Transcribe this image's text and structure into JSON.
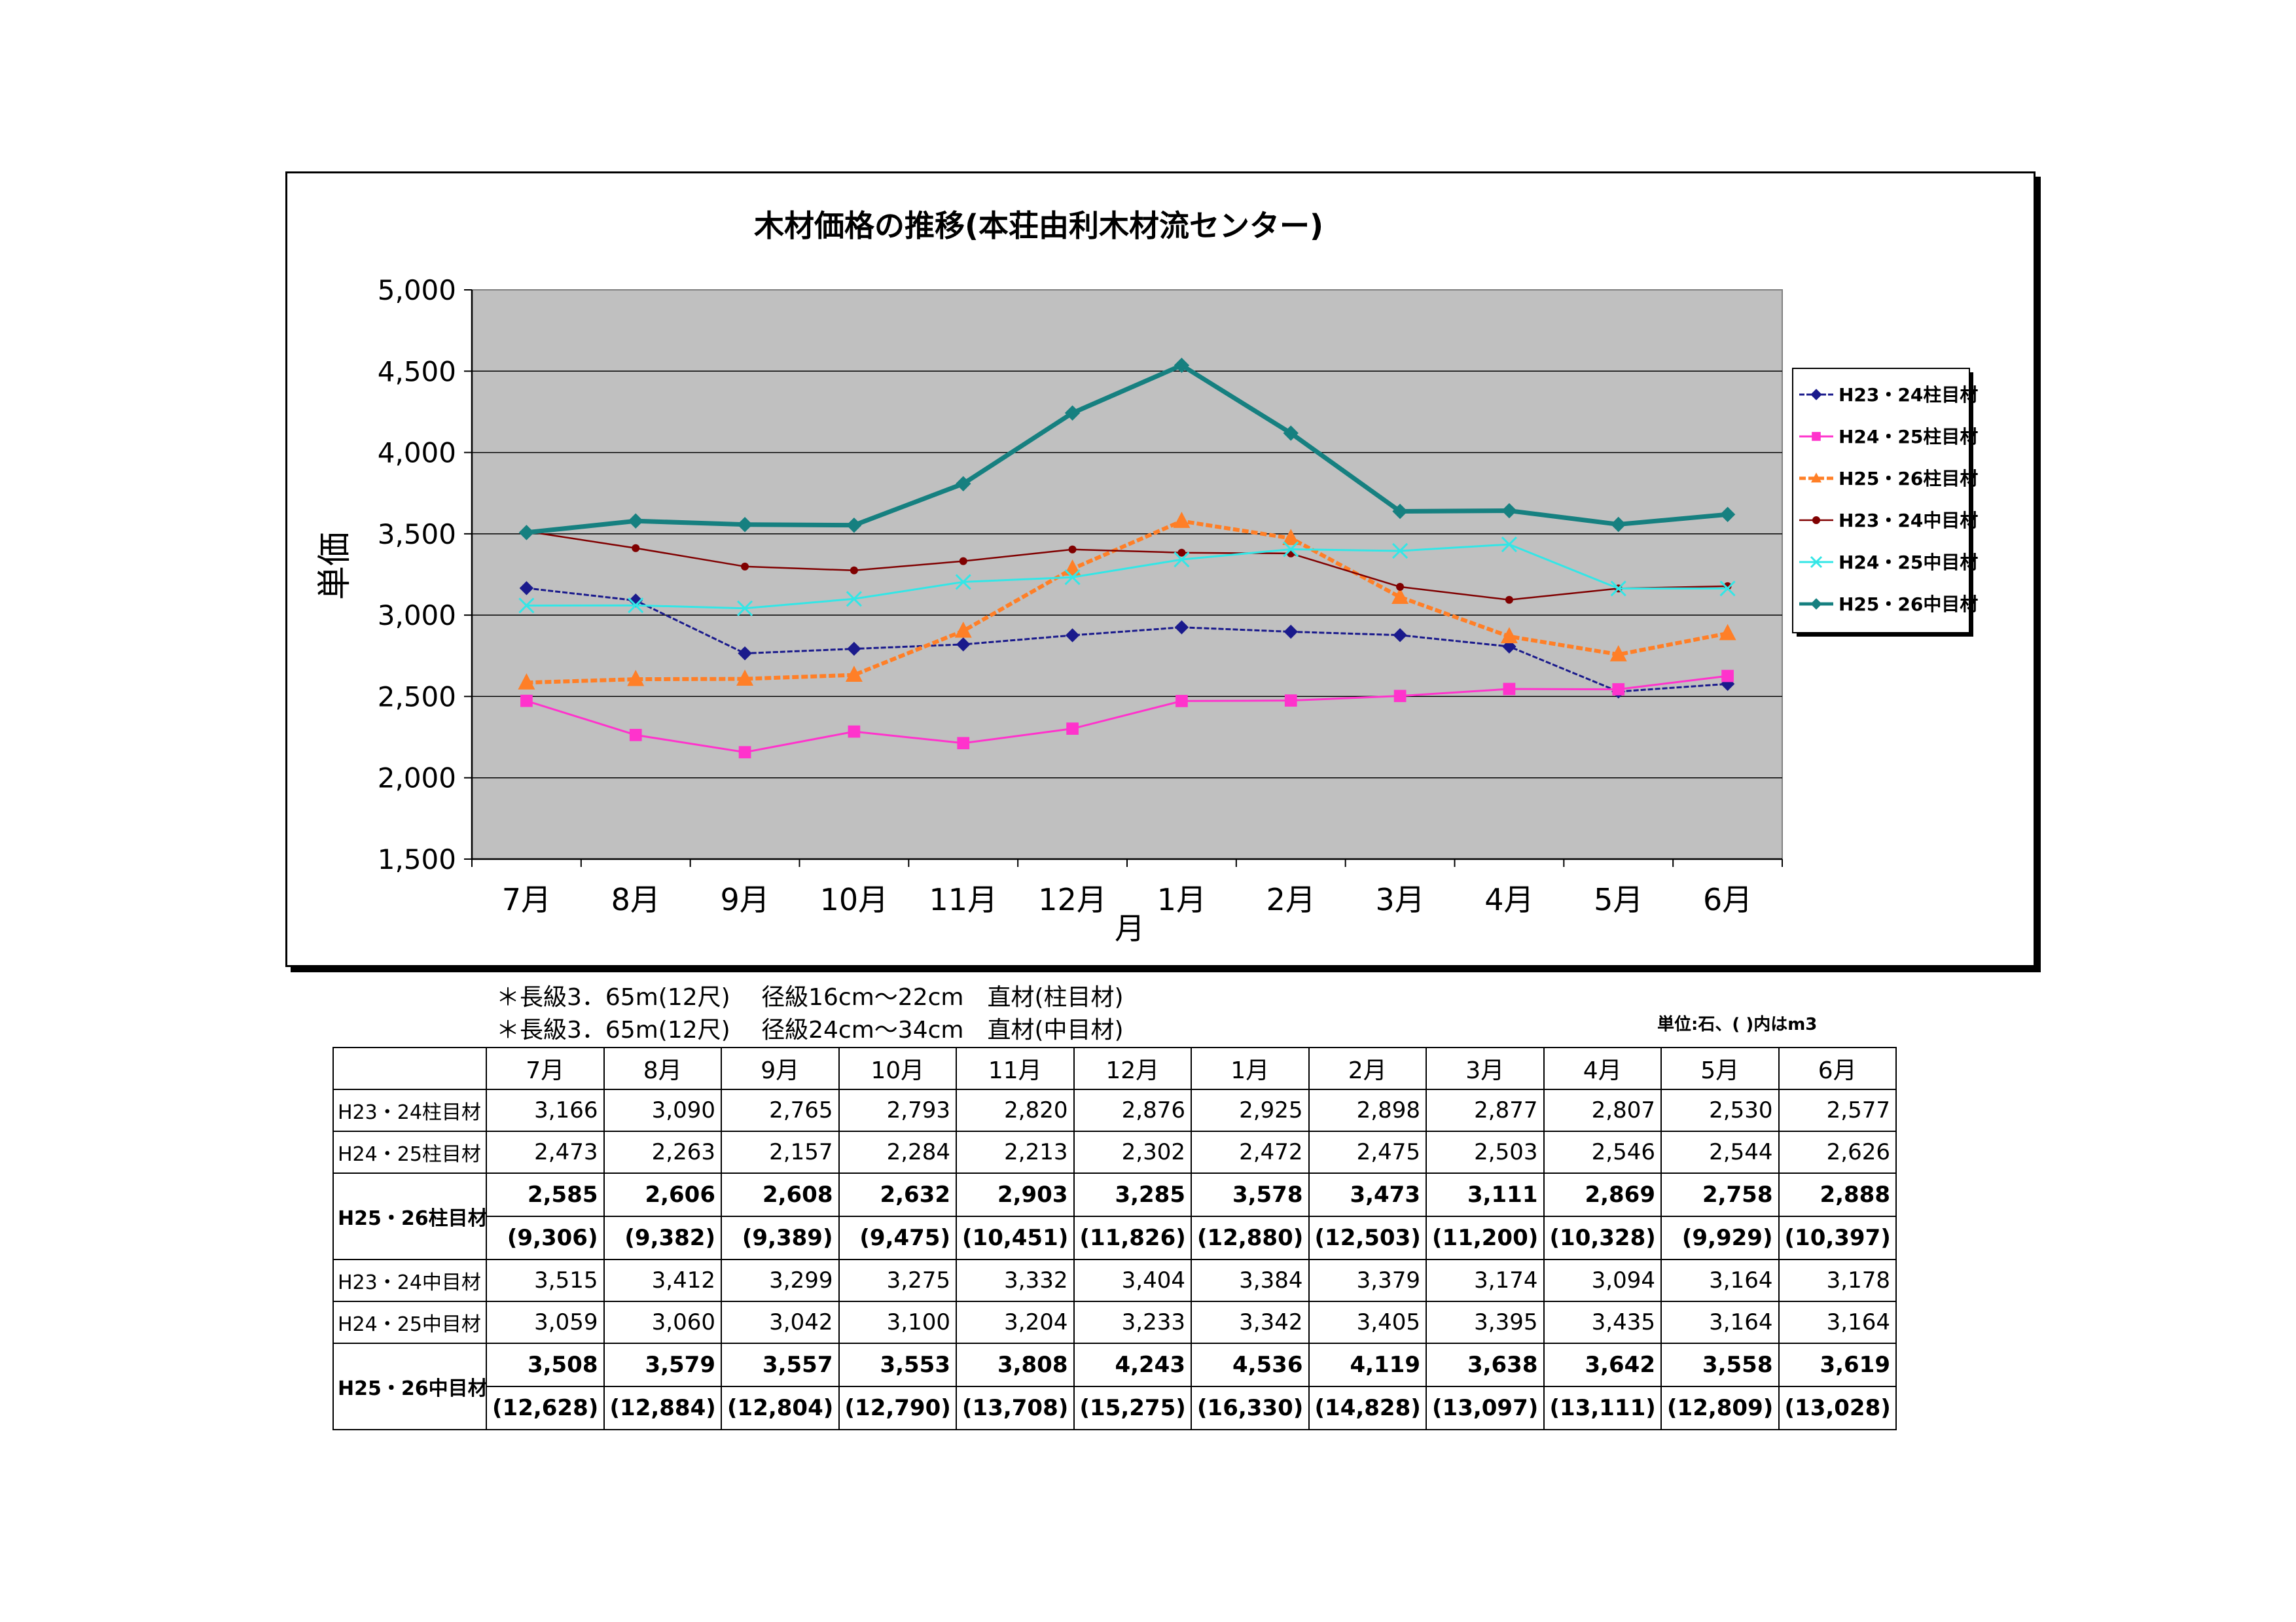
{
  "chart_data": {
    "type": "line",
    "title": "木材価格の推移(本荘由利木材流センター)",
    "xlabel": "月",
    "ylabel": "単価",
    "categories": [
      "7月",
      "8月",
      "9月",
      "10月",
      "11月",
      "12月",
      "1月",
      "2月",
      "3月",
      "4月",
      "5月",
      "6月"
    ],
    "ylim": [
      1500,
      5000
    ],
    "yticks": [
      "1,500",
      "2,000",
      "2,500",
      "3,000",
      "3,500",
      "4,000",
      "4,500",
      "5,000"
    ],
    "ytick_values": [
      1500,
      2000,
      2500,
      3000,
      3500,
      4000,
      4500,
      5000
    ],
    "grid": true,
    "legend": "right",
    "series": [
      {
        "name": "H23・24柱目材",
        "values": [
          3166,
          3090,
          2765,
          2793,
          2820,
          2876,
          2925,
          2898,
          2877,
          2807,
          2530,
          2577
        ],
        "color": "#1a1a8c",
        "marker": "diamond"
      },
      {
        "name": "H24・25柱目材",
        "values": [
          2473,
          2263,
          2157,
          2284,
          2213,
          2302,
          2472,
          2475,
          2503,
          2546,
          2544,
          2626
        ],
        "color": "#ff33cc",
        "marker": "square"
      },
      {
        "name": "H25・26柱目材",
        "values": [
          2585,
          2606,
          2608,
          2632,
          2903,
          3285,
          3578,
          3473,
          3111,
          2869,
          2758,
          2888
        ],
        "color": "#ff7f27",
        "marker": "triangle"
      },
      {
        "name": "H23・24中目材",
        "values": [
          3515,
          3412,
          3299,
          3275,
          3332,
          3404,
          3384,
          3379,
          3174,
          3094,
          3164,
          3178
        ],
        "color": "#800000",
        "marker": "circle"
      },
      {
        "name": "H24・25中目材",
        "values": [
          3059,
          3060,
          3042,
          3100,
          3204,
          3233,
          3342,
          3405,
          3395,
          3435,
          3164,
          3164
        ],
        "color": "#33e6e6",
        "marker": "x"
      },
      {
        "name": "H25・26中目材",
        "values": [
          3508,
          3579,
          3557,
          3553,
          3808,
          4243,
          4536,
          4119,
          3638,
          3642,
          3558,
          3619
        ],
        "color": "#168080",
        "marker": "diamond"
      }
    ]
  },
  "notes": [
    "＊長級3．65m(12尺)　 径級16cm～22cm　直材(柱目材)",
    "＊長級3．65m(12尺)　 径級24cm～34cm　直材(中目材)"
  ],
  "unit_note": "単位:石、( )内はm3",
  "table": {
    "months": [
      "7月",
      "8月",
      "9月",
      "10月",
      "11月",
      "12月",
      "1月",
      "2月",
      "3月",
      "4月",
      "5月",
      "6月"
    ],
    "rows": [
      {
        "label": "H23・24柱目材",
        "values": [
          "3,166",
          "3,090",
          "2,765",
          "2,793",
          "2,820",
          "2,876",
          "2,925",
          "2,898",
          "2,877",
          "2,807",
          "2,530",
          "2,577"
        ]
      },
      {
        "label": "H24・25柱目材",
        "values": [
          "2,473",
          "2,263",
          "2,157",
          "2,284",
          "2,213",
          "2,302",
          "2,472",
          "2,475",
          "2,503",
          "2,546",
          "2,544",
          "2,626"
        ]
      },
      {
        "label": "H25・26柱目材",
        "values": [
          "2,585",
          "2,606",
          "2,608",
          "2,632",
          "2,903",
          "3,285",
          "3,578",
          "3,473",
          "3,111",
          "2,869",
          "2,758",
          "2,888"
        ],
        "m3": [
          "(9,306)",
          "(9,382)",
          "(9,389)",
          "(9,475)",
          "(10,451)",
          "(11,826)",
          "(12,880)",
          "(12,503)",
          "(11,200)",
          "(10,328)",
          "(9,929)",
          "(10,397)"
        ]
      },
      {
        "label": "H23・24中目材",
        "values": [
          "3,515",
          "3,412",
          "3,299",
          "3,275",
          "3,332",
          "3,404",
          "3,384",
          "3,379",
          "3,174",
          "3,094",
          "3,164",
          "3,178"
        ]
      },
      {
        "label": "H24・25中目材",
        "values": [
          "3,059",
          "3,060",
          "3,042",
          "3,100",
          "3,204",
          "3,233",
          "3,342",
          "3,405",
          "3,395",
          "3,435",
          "3,164",
          "3,164"
        ]
      },
      {
        "label": "H25・26中目材",
        "values": [
          "3,508",
          "3,579",
          "3,557",
          "3,553",
          "3,808",
          "4,243",
          "4,536",
          "4,119",
          "3,638",
          "3,642",
          "3,558",
          "3,619"
        ],
        "m3": [
          "(12,628)",
          "(12,884)",
          "(12,804)",
          "(12,790)",
          "(13,708)",
          "(15,275)",
          "(16,330)",
          "(14,828)",
          "(13,097)",
          "(13,111)",
          "(12,809)",
          "(13,028)"
        ]
      }
    ]
  }
}
